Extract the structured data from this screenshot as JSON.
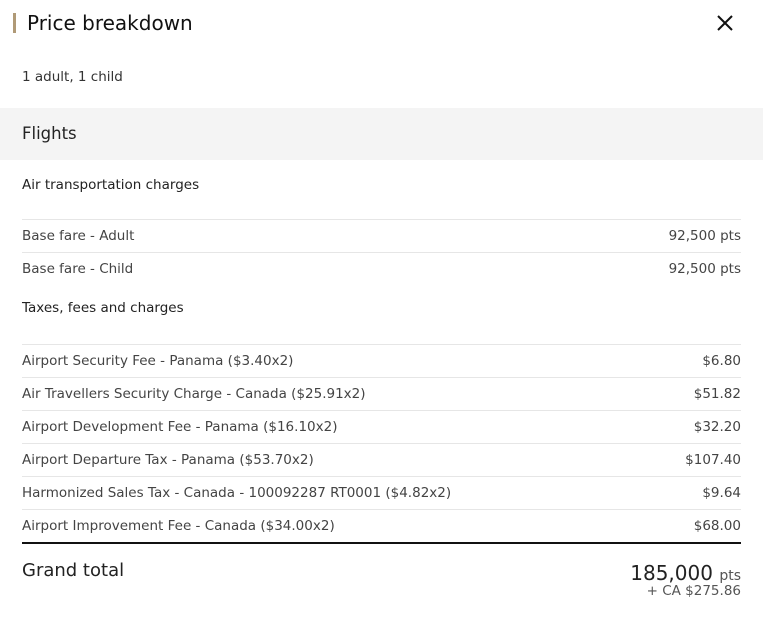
{
  "header": {
    "title": "Price breakdown",
    "passengers": "1 adult, 1 child"
  },
  "section": "Flights",
  "air": {
    "heading": "Air transportation charges",
    "rows": [
      {
        "label": "Base fare - Adult",
        "value": "92,500 pts"
      },
      {
        "label": "Base fare - Child",
        "value": "92,500 pts"
      }
    ]
  },
  "taxes": {
    "heading": "Taxes, fees and charges",
    "rows": [
      {
        "label": "Airport Security Fee - Panama ($3.40x2)",
        "value": "$6.80"
      },
      {
        "label": "Air Travellers Security Charge - Canada ($25.91x2)",
        "value": "$51.82"
      },
      {
        "label": "Airport Development Fee - Panama ($16.10x2)",
        "value": "$32.20"
      },
      {
        "label": "Airport Departure Tax - Panama ($53.70x2)",
        "value": "$107.40"
      },
      {
        "label": "Harmonized Sales Tax - Canada - 100092287 RT0001 ($4.82x2)",
        "value": "$9.64"
      },
      {
        "label": "Airport Improvement Fee - Canada ($34.00x2)",
        "value": "$68.00"
      }
    ]
  },
  "total": {
    "label": "Grand total",
    "points": "185,000",
    "points_unit": "pts",
    "cash": "+ CA $275.86"
  }
}
